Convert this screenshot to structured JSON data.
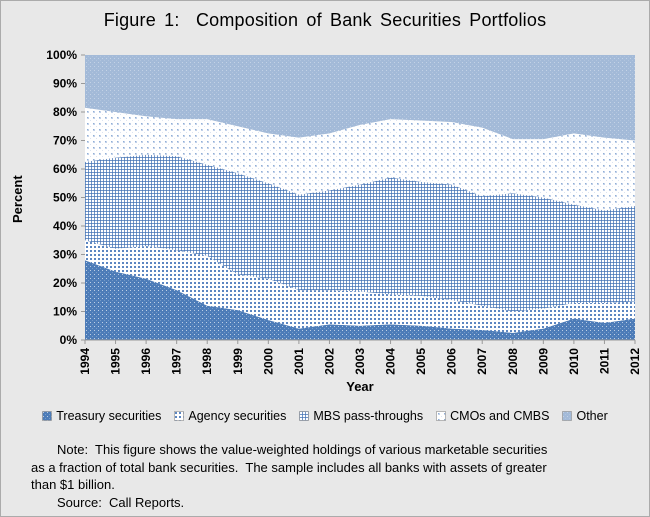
{
  "chart_data": {
    "type": "area",
    "stacked": true,
    "stack_total": 100,
    "title": "Figure 1:  Composition of Bank Securities Portfolios",
    "xlabel": "Year",
    "ylabel": "Percent",
    "x": [
      1994,
      1995,
      1996,
      1997,
      1998,
      1999,
      2000,
      2001,
      2002,
      2003,
      2004,
      2005,
      2006,
      2007,
      2008,
      2009,
      2010,
      2011,
      2012
    ],
    "series": [
      {
        "name": "Treasury securities",
        "fill": "treasury",
        "values": [
          28,
          24,
          21.5,
          17.5,
          12,
          10.5,
          7,
          4,
          5.5,
          5,
          5.5,
          5,
          4,
          3.5,
          2.5,
          4,
          7.5,
          6,
          7.5
        ]
      },
      {
        "name": "Agency securities",
        "fill": "agency",
        "values": [
          7,
          8,
          11.5,
          14,
          17.5,
          12.5,
          14.5,
          13.5,
          12,
          12,
          10.5,
          10.5,
          10,
          8.5,
          7.5,
          7,
          5.5,
          7,
          6
        ]
      },
      {
        "name": "MBS pass-throughs",
        "fill": "mbs",
        "values": [
          27.5,
          32,
          32,
          33,
          32,
          35.5,
          33.5,
          33.5,
          35,
          37.5,
          41,
          40,
          40.5,
          38.5,
          41.5,
          39,
          34.5,
          32.5,
          33.5
        ]
      },
      {
        "name": "CMOs and CMBS",
        "fill": "cmos",
        "values": [
          19,
          16,
          13.5,
          13,
          16,
          16.5,
          17.5,
          20,
          20,
          21,
          20.5,
          21.5,
          22,
          24,
          19,
          20.5,
          25,
          25.5,
          23
        ]
      },
      {
        "name": "Other",
        "fill": "other",
        "values": [
          18.5,
          20,
          21.5,
          22.5,
          22.5,
          25,
          27.5,
          29,
          27.5,
          24.5,
          22.5,
          23,
          23.5,
          25.5,
          29.5,
          29.5,
          27.5,
          29,
          30
        ]
      }
    ],
    "ylim": [
      0,
      100
    ],
    "ytick_step": 10,
    "ytick_suffix": "%",
    "legend_position": "bottom",
    "grid": false
  },
  "note": {
    "lines": [
      "Note:  This figure shows the value-weighted holdings of various marketable securities",
      "as a fraction of total bank securities.  The sample includes all banks with assets of greater",
      "than $1 billion.",
      "Source:  Call Reports."
    ]
  },
  "colors": {
    "treasury_blue": "#4d7cb8",
    "pattern_blue": "#7496c8",
    "agency_dot_blue": "#5c86c1",
    "cmos_dot_blue": "#8fafd6",
    "other_light_blue": "#a3bad8",
    "background": "#e8e8e8",
    "axis_gray": "#999999"
  }
}
